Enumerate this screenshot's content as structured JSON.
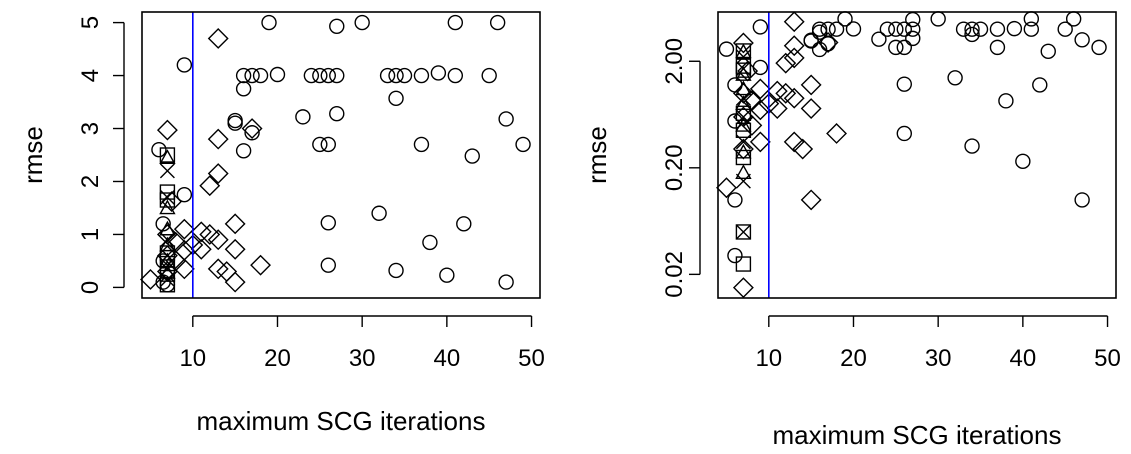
{
  "chart_data": [
    {
      "type": "scatter",
      "xlabel": "maximum SCG iterations",
      "ylabel": "rmse",
      "xlim": [
        4,
        51
      ],
      "ylim": [
        -0.2,
        5.2
      ],
      "log_y": false,
      "x_ticks": [
        10,
        20,
        30,
        40,
        50
      ],
      "x_tick_labels": [
        "10",
        "20",
        "30",
        "40",
        "50"
      ],
      "y_ticks": [
        0,
        1,
        2,
        3,
        4,
        5
      ],
      "y_tick_labels": [
        "0",
        "1",
        "2",
        "3",
        "4",
        "5"
      ],
      "grid": false,
      "vline": {
        "x": 10,
        "color": "#0000ff"
      },
      "series": [
        {
          "marker": "circle",
          "points": [
            [
              6,
              2.6
            ],
            [
              6.5,
              1.2
            ],
            [
              6.5,
              0.5
            ],
            [
              7,
              0.05
            ],
            [
              6.5,
              0.1
            ],
            [
              9,
              4.2
            ],
            [
              9,
              1.75
            ],
            [
              15,
              3.15
            ],
            [
              15,
              3.1
            ],
            [
              16,
              4.0
            ],
            [
              16,
              3.75
            ],
            [
              16,
              2.58
            ],
            [
              17,
              4.0
            ],
            [
              17,
              2.92
            ],
            [
              18,
              4.0
            ],
            [
              19,
              5.0
            ],
            [
              20,
              4.02
            ],
            [
              23,
              3.22
            ],
            [
              24,
              4.0
            ],
            [
              25,
              4.0
            ],
            [
              25,
              2.7
            ],
            [
              26,
              4.0
            ],
            [
              26,
              2.7
            ],
            [
              26,
              1.22
            ],
            [
              26,
              0.42
            ],
            [
              27,
              4.93
            ],
            [
              27,
              4.0
            ],
            [
              27,
              3.28
            ],
            [
              30,
              5.0
            ],
            [
              32,
              1.4
            ],
            [
              33,
              4.0
            ],
            [
              34,
              4.0
            ],
            [
              34,
              3.57
            ],
            [
              34,
              0.32
            ],
            [
              35,
              4.0
            ],
            [
              37,
              4.0
            ],
            [
              37,
              2.7
            ],
            [
              38,
              0.85
            ],
            [
              39,
              4.05
            ],
            [
              40,
              0.23
            ],
            [
              41,
              5.0
            ],
            [
              41,
              4.0
            ],
            [
              42,
              1.2
            ],
            [
              43,
              2.48
            ],
            [
              45,
              4.0
            ],
            [
              46,
              5.0
            ],
            [
              47,
              3.18
            ],
            [
              47,
              0.1
            ],
            [
              49,
              2.7
            ]
          ]
        },
        {
          "marker": "diamond",
          "points": [
            [
              5,
              0.15
            ],
            [
              7,
              2.97
            ],
            [
              7.5,
              1.62
            ],
            [
              7,
              1.0
            ],
            [
              7,
              0.6
            ],
            [
              7,
              0.3
            ],
            [
              8,
              0.5
            ],
            [
              8,
              0.85
            ],
            [
              9,
              1.1
            ],
            [
              9,
              0.7
            ],
            [
              9,
              0.35
            ],
            [
              10,
              0.8
            ],
            [
              11,
              1.05
            ],
            [
              11,
              0.72
            ],
            [
              12,
              1.92
            ],
            [
              12,
              1.0
            ],
            [
              13,
              4.7
            ],
            [
              13,
              2.8
            ],
            [
              13,
              2.15
            ],
            [
              13,
              0.9
            ],
            [
              13,
              0.35
            ],
            [
              14,
              0.3
            ],
            [
              15,
              1.2
            ],
            [
              15,
              0.72
            ],
            [
              15,
              0.1
            ],
            [
              17,
              3.0
            ],
            [
              18,
              0.42
            ]
          ]
        },
        {
          "marker": "square",
          "points": [
            [
              7,
              2.5
            ],
            [
              7,
              1.8
            ],
            [
              7,
              1.65
            ],
            [
              7,
              0.65
            ],
            [
              7,
              0.45
            ],
            [
              7,
              0.25
            ],
            [
              7,
              0.05
            ]
          ]
        },
        {
          "marker": "cross",
          "points": [
            [
              7,
              2.2
            ],
            [
              7,
              1.7
            ],
            [
              7,
              0.9
            ],
            [
              7,
              0.6
            ],
            [
              7,
              0.35
            ],
            [
              7,
              0.15
            ]
          ]
        },
        {
          "marker": "triangle",
          "points": [
            [
              7,
              2.45
            ],
            [
              7,
              1.5
            ],
            [
              7,
              1.1
            ],
            [
              7,
              0.8
            ],
            [
              7,
              0.5
            ],
            [
              7,
              0.28
            ]
          ]
        }
      ]
    },
    {
      "type": "scatter",
      "xlabel": "maximum SCG iterations",
      "ylabel": "rmse",
      "xlim": [
        4,
        51
      ],
      "ylim": [
        0.012,
        5.8
      ],
      "log_y": true,
      "x_ticks": [
        10,
        20,
        30,
        40,
        50
      ],
      "x_tick_labels": [
        "10",
        "20",
        "30",
        "40",
        "50"
      ],
      "y_ticks": [
        0.02,
        0.2,
        2.0
      ],
      "y_tick_labels": [
        "0.02",
        "0.20",
        "2.00"
      ],
      "grid": false,
      "vline": {
        "x": 10,
        "color": "#0000ff"
      },
      "series": [
        {
          "marker": "circle",
          "points": [
            [
              5,
              2.6
            ],
            [
              6,
              1.2
            ],
            [
              6,
              0.55
            ],
            [
              6,
              0.1
            ],
            [
              6,
              0.03
            ],
            [
              9,
              4.2
            ],
            [
              9,
              1.75
            ],
            [
              15,
              3.15
            ],
            [
              15,
              3.1
            ],
            [
              16,
              4.0
            ],
            [
              16,
              3.75
            ],
            [
              16,
              2.58
            ],
            [
              17,
              4.0
            ],
            [
              17,
              2.92
            ],
            [
              18,
              4.0
            ],
            [
              19,
              5.0
            ],
            [
              20,
              4.02
            ],
            [
              23,
              3.22
            ],
            [
              24,
              4.0
            ],
            [
              25,
              4.0
            ],
            [
              25,
              2.7
            ],
            [
              26,
              4.0
            ],
            [
              26,
              2.7
            ],
            [
              26,
              1.22
            ],
            [
              26,
              0.42
            ],
            [
              27,
              4.93
            ],
            [
              27,
              4.0
            ],
            [
              27,
              3.28
            ],
            [
              30,
              5.0
            ],
            [
              32,
              1.4
            ],
            [
              33,
              4.0
            ],
            [
              34,
              4.0
            ],
            [
              34,
              3.57
            ],
            [
              34,
              0.32
            ],
            [
              35,
              4.0
            ],
            [
              37,
              4.0
            ],
            [
              37,
              2.7
            ],
            [
              38,
              0.85
            ],
            [
              39,
              4.05
            ],
            [
              40,
              0.23
            ],
            [
              41,
              5.0
            ],
            [
              41,
              4.0
            ],
            [
              42,
              1.2
            ],
            [
              43,
              2.48
            ],
            [
              45,
              4.0
            ],
            [
              46,
              5.0
            ],
            [
              47,
              3.18
            ],
            [
              47,
              0.1
            ],
            [
              49,
              2.7
            ]
          ]
        },
        {
          "marker": "diamond",
          "points": [
            [
              5,
              0.13
            ],
            [
              7,
              2.97
            ],
            [
              7.5,
              1.62
            ],
            [
              7,
              1.0
            ],
            [
              7,
              0.6
            ],
            [
              7,
              0.3
            ],
            [
              7,
              0.015
            ],
            [
              8,
              0.5
            ],
            [
              8,
              0.85
            ],
            [
              9,
              1.1
            ],
            [
              9,
              0.7
            ],
            [
              9,
              0.35
            ],
            [
              10,
              0.8
            ],
            [
              11,
              1.05
            ],
            [
              11,
              0.72
            ],
            [
              12,
              1.92
            ],
            [
              12,
              1.0
            ],
            [
              13,
              4.7
            ],
            [
              13,
              2.8
            ],
            [
              13,
              2.15
            ],
            [
              13,
              0.9
            ],
            [
              13,
              0.35
            ],
            [
              14,
              0.3
            ],
            [
              15,
              1.2
            ],
            [
              15,
              0.72
            ],
            [
              15,
              0.1
            ],
            [
              17,
              3.0
            ],
            [
              18,
              0.42
            ]
          ]
        },
        {
          "marker": "square",
          "points": [
            [
              7,
              2.5
            ],
            [
              7,
              1.8
            ],
            [
              7,
              1.65
            ],
            [
              7,
              0.65
            ],
            [
              7,
              0.45
            ],
            [
              7,
              0.25
            ],
            [
              7,
              0.05
            ],
            [
              7,
              0.025
            ]
          ]
        },
        {
          "marker": "cross",
          "points": [
            [
              7,
              2.2
            ],
            [
              7,
              1.7
            ],
            [
              7,
              0.9
            ],
            [
              7,
              0.6
            ],
            [
              7,
              0.35
            ],
            [
              7,
              0.15
            ],
            [
              7,
              0.05
            ]
          ]
        },
        {
          "marker": "triangle",
          "points": [
            [
              7,
              2.45
            ],
            [
              7,
              1.5
            ],
            [
              7,
              1.1
            ],
            [
              7,
              0.8
            ],
            [
              7,
              0.5
            ],
            [
              7,
              0.28
            ],
            [
              7,
              0.18
            ]
          ]
        }
      ]
    }
  ]
}
